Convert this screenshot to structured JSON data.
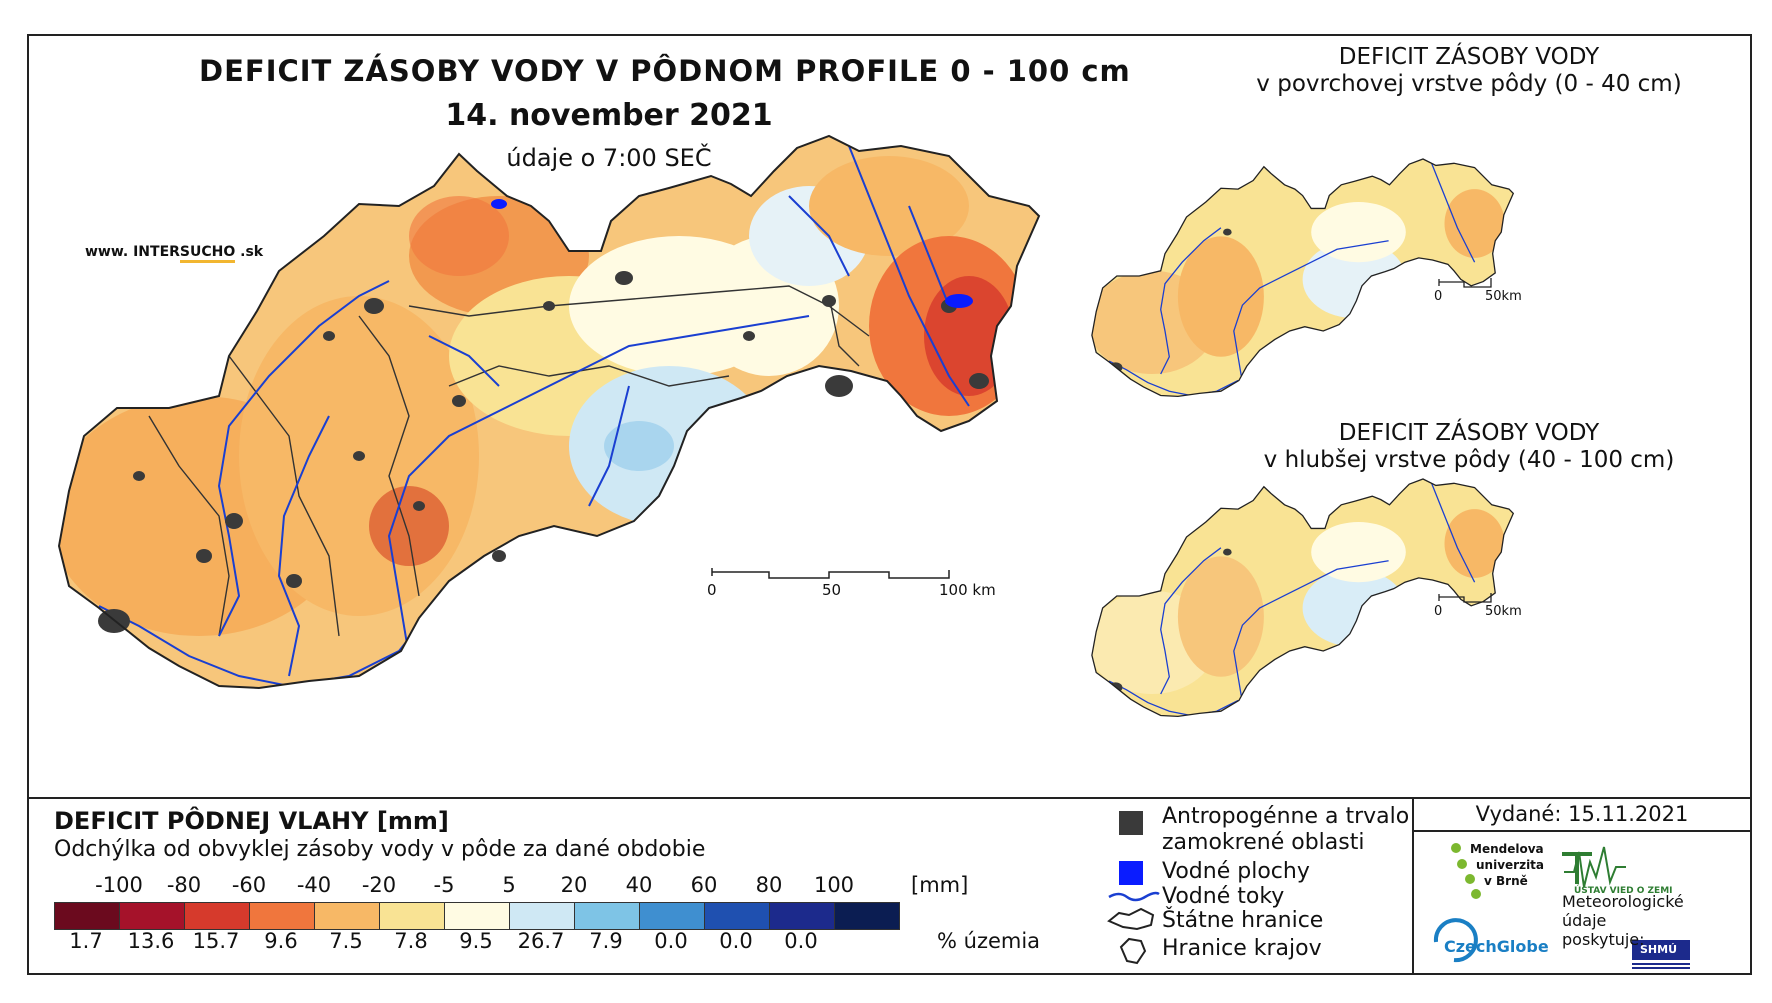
{
  "main": {
    "title": "DEFICIT ZÁSOBY VODY V PÔDNOM PROFILE 0 - 100 cm",
    "date": "14. november 2021",
    "time": "údaje o 7:00 SEČ",
    "website_prefix": "www. INTER",
    "website_mid": "SUCHO",
    "website_suffix": " .sk"
  },
  "main_scale": {
    "labels": [
      "0",
      "50",
      "100 km"
    ]
  },
  "inset_top": {
    "title_line1": "DEFICIT ZÁSOBY VODY",
    "title_line2": "v povrchovej vrstve pôdy (0 - 40 cm)",
    "scale_labels": [
      "0",
      "50km"
    ]
  },
  "inset_bottom": {
    "title_line1": "DEFICIT ZÁSOBY VODY",
    "title_line2": "v hlubšej vrstve pôdy (40 - 100 cm)",
    "scale_labels": [
      "0",
      "50km"
    ]
  },
  "legend": {
    "title": "DEFICIT PÔDNEJ VLAHY [mm]",
    "subtitle": "Odchýlka od obvyklej zásoby vody v pôde za dané obdobie",
    "breaks": [
      "-100",
      "-80",
      "-60",
      "-40",
      "-20",
      "-5",
      "5",
      "20",
      "40",
      "60",
      "80",
      "100"
    ],
    "unit_mm": "[mm]",
    "classes": [
      {
        "color": "#6b0a1e",
        "pct": "1.7"
      },
      {
        "color": "#a5122a",
        "pct": "13.6"
      },
      {
        "color": "#d63a2c",
        "pct": "15.7"
      },
      {
        "color": "#f0763d",
        "pct": "9.6"
      },
      {
        "color": "#f7b866",
        "pct": "7.5"
      },
      {
        "color": "#f9e394",
        "pct": "7.8"
      },
      {
        "color": "#fffbe3",
        "pct": "9.5"
      },
      {
        "color": "#cfe8f4",
        "pct": "26.7"
      },
      {
        "color": "#7ec4e6",
        "pct": "7.9"
      },
      {
        "color": "#3f8fd0",
        "pct": "0.0"
      },
      {
        "color": "#1f50b0",
        "pct": "0.0"
      },
      {
        "color": "#1c2a8c",
        "pct": "0.0"
      },
      {
        "color": "#0b1d52",
        "pct": ""
      }
    ],
    "unit_pct": "% územia"
  },
  "symbols": {
    "anthropogenic_line1": "Antropogénne a trvalo",
    "anthropogenic_line2": "zamokrené oblasti",
    "water_bodies": "Vodné plochy",
    "streams": "Vodné toky",
    "state_border": "Štátne hranice",
    "region_border": "Hranice krajov"
  },
  "issued": "Vydané: 15.11.2021",
  "logos": {
    "mendel": [
      "Mendelova",
      "univerzita",
      "v Brně"
    ],
    "czechglobe": "CzechGlobe",
    "ustav": "ÚSTAV VIED O ZEMI",
    "meteo": [
      "Meteorologické",
      "údaje",
      "poskytuje:"
    ],
    "shmu": "SHMÚ"
  },
  "colors": {
    "accent_green": "#7cb82f",
    "czechglobe_blue": "#1a7fc4",
    "river_blue": "#1a3fd1",
    "water_blue": "#0a1cff",
    "urban_gray": "#3a3a3a"
  }
}
